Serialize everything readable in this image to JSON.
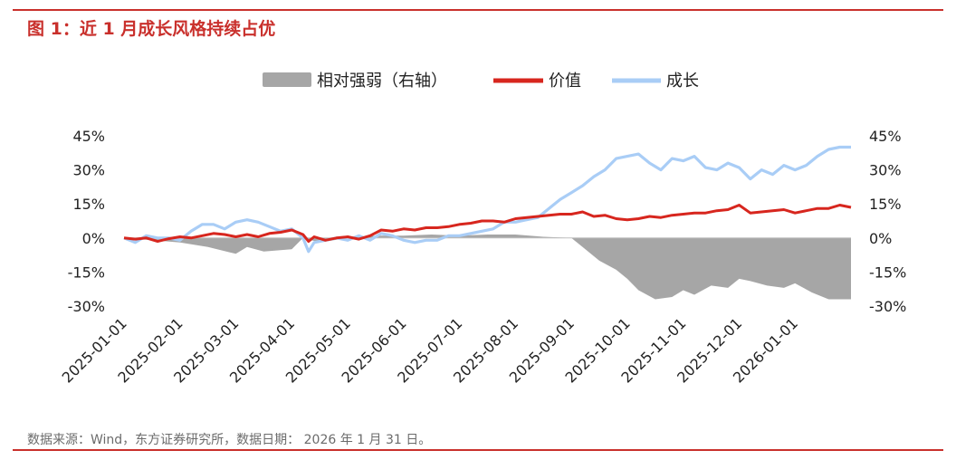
{
  "figure": {
    "title": "图 1：近 1 月成长风格持续占优",
    "source": "数据来源：Wind，东方证券研究所，数据日期： 2026 年 1 月 31 日。"
  },
  "colors": {
    "accent": "#c9302c",
    "relative": "#a6a6a6",
    "value": "#d7261e",
    "growth": "#a9cdf6"
  },
  "chart_data": {
    "type": "line",
    "legend": [
      "相对强弱（右轴）",
      "价值",
      "成长"
    ],
    "legend_position": "top-center",
    "x_tick_labels": [
      "2025-01-01",
      "2025-02-01",
      "2025-03-01",
      "2025-04-01",
      "2025-05-01",
      "2025-06-01",
      "2025-07-01",
      "2025-08-01",
      "2025-09-01",
      "2025-10-01",
      "2025-11-01",
      "2025-12-01",
      "2026-01-01"
    ],
    "y_left": {
      "ticks": [
        "45%",
        "30%",
        "15%",
        "0%",
        "-15%",
        "-30%"
      ],
      "ylim": [
        -30,
        45
      ]
    },
    "y_right": {
      "ticks": [
        "45%",
        "30%",
        "15%",
        "0%",
        "-15%",
        "-30%"
      ],
      "ylim": [
        -30,
        45
      ]
    },
    "x_range_months": [
      0,
      13
    ],
    "series": [
      {
        "name": "价值",
        "kind": "line",
        "axis": "left",
        "x": [
          0,
          0.2,
          0.4,
          0.6,
          0.8,
          1.0,
          1.2,
          1.4,
          1.6,
          1.8,
          2.0,
          2.2,
          2.4,
          2.6,
          2.8,
          3.0,
          3.2,
          3.3,
          3.4,
          3.6,
          3.8,
          4.0,
          4.2,
          4.4,
          4.6,
          4.8,
          5.0,
          5.2,
          5.4,
          5.6,
          5.8,
          6.0,
          6.2,
          6.4,
          6.6,
          6.8,
          7.0,
          7.2,
          7.4,
          7.6,
          7.8,
          8.0,
          8.2,
          8.4,
          8.6,
          8.8,
          9.0,
          9.2,
          9.4,
          9.6,
          9.8,
          10.0,
          10.2,
          10.4,
          10.6,
          10.8,
          11.0,
          11.2,
          11.4,
          11.6,
          11.8,
          12.0,
          12.2,
          12.4,
          12.6,
          12.8,
          13.0
        ],
        "values": [
          0,
          -0.5,
          0,
          -1.5,
          -0.3,
          0.5,
          0,
          1,
          2,
          1.5,
          0.5,
          1.5,
          0.5,
          2,
          2.5,
          3.5,
          1.5,
          -1.5,
          0.5,
          -1,
          0,
          0.5,
          -0.5,
          1,
          3.5,
          3,
          4,
          3.5,
          4.5,
          4.5,
          5,
          6,
          6.5,
          7.5,
          7.5,
          7,
          8.5,
          9,
          9.5,
          10,
          10.5,
          10.5,
          11.5,
          9.5,
          10,
          8.5,
          8,
          8.5,
          9.5,
          9,
          10,
          10.5,
          11,
          11,
          12,
          12.5,
          14.5,
          11,
          11.5,
          12,
          12.5,
          11,
          12,
          13,
          13,
          14.5,
          13.5
        ]
      },
      {
        "name": "成长",
        "kind": "line",
        "axis": "left",
        "x": [
          0,
          0.2,
          0.4,
          0.6,
          0.8,
          1.0,
          1.2,
          1.4,
          1.6,
          1.8,
          2.0,
          2.2,
          2.4,
          2.6,
          2.8,
          3.0,
          3.2,
          3.3,
          3.4,
          3.6,
          3.8,
          4.0,
          4.2,
          4.4,
          4.6,
          4.8,
          5.0,
          5.2,
          5.4,
          5.6,
          5.8,
          6.0,
          6.2,
          6.4,
          6.6,
          6.8,
          7.0,
          7.2,
          7.4,
          7.6,
          7.8,
          8.0,
          8.2,
          8.4,
          8.6,
          8.8,
          9.0,
          9.2,
          9.4,
          9.6,
          9.8,
          10.0,
          10.2,
          10.4,
          10.6,
          10.8,
          11.0,
          11.2,
          11.4,
          11.6,
          11.8,
          12.0,
          12.2,
          12.4,
          12.6,
          12.8,
          13.0
        ],
        "values": [
          0,
          -2,
          1,
          0,
          0,
          -1,
          3,
          6,
          6,
          4,
          7,
          8,
          7,
          5,
          3,
          4,
          0,
          -6,
          -2,
          -1,
          0,
          -1,
          1,
          -1,
          2,
          1,
          -1,
          -2,
          -1,
          -1,
          1,
          1,
          2,
          3,
          4,
          7,
          7,
          8,
          9,
          13,
          17,
          20,
          23,
          27,
          30,
          35,
          36,
          37,
          33,
          30,
          35,
          34,
          36,
          31,
          30,
          33,
          31,
          26,
          30,
          28,
          32,
          30,
          32,
          36,
          39,
          40,
          40
        ]
      },
      {
        "name": "相对强弱（右轴）",
        "kind": "area",
        "axis": "right",
        "x": [
          0,
          0.5,
          1.0,
          1.5,
          2.0,
          2.2,
          2.5,
          3.0,
          3.2,
          3.5,
          4.0,
          4.5,
          5.0,
          5.5,
          6.0,
          6.5,
          7.0,
          7.5,
          8.0,
          8.2,
          8.5,
          8.8,
          9.0,
          9.2,
          9.5,
          9.8,
          10.0,
          10.2,
          10.5,
          10.8,
          11.0,
          11.2,
          11.5,
          11.8,
          12.0,
          12.3,
          12.6,
          13.0
        ],
        "values": [
          0,
          -1,
          -2,
          -4,
          -7,
          -4,
          -6,
          -5,
          0,
          -2,
          0,
          1,
          1,
          1.5,
          1,
          1.5,
          1.5,
          0.5,
          0,
          -4,
          -10,
          -14,
          -18,
          -23,
          -27,
          -26,
          -23,
          -25,
          -21,
          -22,
          -18,
          -19,
          -21,
          -22,
          -20,
          -24,
          -27,
          -27
        ]
      }
    ]
  }
}
